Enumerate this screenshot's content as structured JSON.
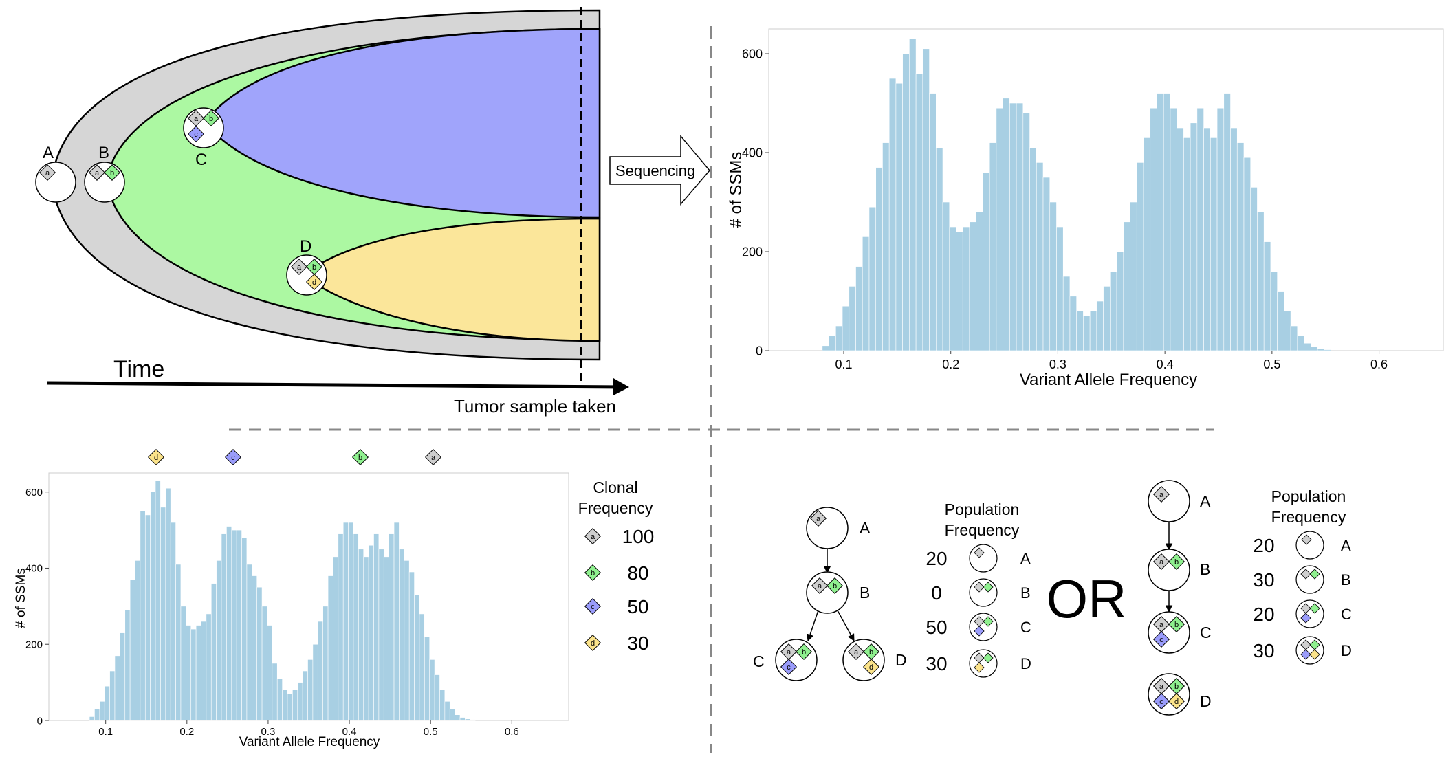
{
  "fish": {
    "label_A": "A",
    "label_B": "B",
    "label_C": "C",
    "label_D": "D",
    "time_label": "Time",
    "sample_label": "Tumor sample taken",
    "sequencing_label": "Sequencing"
  },
  "mutations": {
    "a": "a",
    "b": "b",
    "c": "c",
    "d": "d"
  },
  "colors": {
    "a": "#cfcfcf",
    "b": "#8ff08f",
    "c": "#9a9cfb",
    "d": "#fbe38a",
    "fish_outer": "#d6d6d6",
    "fish_green": "#acf8a2",
    "fish_blue": "#a0a4fb",
    "fish_yellow": "#fbe69a",
    "histogram": "#a8cfe3"
  },
  "chart_data": [
    {
      "type": "bar",
      "id": "top-histogram",
      "xlabel": "Variant Allele Frequency",
      "ylabel": "# of SSMs",
      "xlim": [
        0.03,
        0.66
      ],
      "ylim": [
        0,
        650
      ],
      "xticks": [
        "0.1",
        "0.2",
        "0.3",
        "0.4",
        "0.5",
        "0.6"
      ],
      "yticks": [
        "0",
        "200",
        "400",
        "600"
      ],
      "bin_start": 0.08,
      "bin_width": 0.00625,
      "values": [
        10,
        30,
        50,
        90,
        130,
        170,
        230,
        290,
        370,
        420,
        550,
        540,
        600,
        630,
        560,
        610,
        520,
        410,
        300,
        250,
        240,
        250,
        260,
        280,
        360,
        420,
        490,
        510,
        500,
        500,
        480,
        410,
        380,
        350,
        300,
        250,
        150,
        110,
        80,
        70,
        80,
        100,
        130,
        160,
        200,
        260,
        300,
        380,
        430,
        490,
        520,
        520,
        490,
        450,
        430,
        460,
        490,
        450,
        430,
        490,
        520,
        450,
        420,
        390,
        330,
        280,
        220,
        160,
        120,
        80,
        50,
        30,
        15,
        8,
        4,
        2
      ]
    },
    {
      "type": "bar",
      "id": "bottom-histogram",
      "xlabel": "Variant Allele Frequency",
      "ylabel": "# of SSMs",
      "xlim": [
        0.03,
        0.67
      ],
      "ylim": [
        0,
        650
      ],
      "xticks": [
        "0.1",
        "0.2",
        "0.3",
        "0.4",
        "0.5",
        "0.6"
      ],
      "yticks": [
        "0",
        "200",
        "400",
        "600"
      ],
      "bin_start": 0.08,
      "bin_width": 0.00625,
      "values": [
        10,
        30,
        50,
        90,
        130,
        170,
        230,
        290,
        370,
        420,
        550,
        540,
        600,
        630,
        560,
        610,
        520,
        410,
        300,
        250,
        240,
        250,
        260,
        280,
        360,
        420,
        490,
        510,
        500,
        500,
        480,
        410,
        380,
        350,
        300,
        250,
        150,
        110,
        80,
        70,
        80,
        100,
        130,
        160,
        200,
        260,
        300,
        380,
        430,
        490,
        520,
        520,
        490,
        450,
        430,
        460,
        490,
        450,
        430,
        490,
        520,
        450,
        420,
        390,
        330,
        280,
        220,
        160,
        120,
        80,
        50,
        30,
        15,
        8,
        4,
        2
      ]
    }
  ],
  "clonal": {
    "title_line1": "Clonal",
    "title_line2": "Frequency",
    "rows": [
      {
        "mut": "a",
        "value": "100"
      },
      {
        "mut": "b",
        "value": "80"
      },
      {
        "mut": "c",
        "value": "50"
      },
      {
        "mut": "d",
        "value": "30"
      }
    ]
  },
  "tree1": {
    "nodes": [
      "A",
      "B",
      "C",
      "D"
    ],
    "pop_title_line1": "Population",
    "pop_title_line2": "Frequency",
    "pop": [
      {
        "value": "20",
        "label": "A"
      },
      {
        "value": "0",
        "label": "B"
      },
      {
        "value": "50",
        "label": "C"
      },
      {
        "value": "30",
        "label": "D"
      }
    ]
  },
  "or_label": "OR",
  "tree2": {
    "nodes": [
      "A",
      "B",
      "C",
      "D"
    ],
    "pop_title_line1": "Population",
    "pop_title_line2": "Frequency",
    "pop": [
      {
        "value": "20",
        "label": "A"
      },
      {
        "value": "30",
        "label": "B"
      },
      {
        "value": "20",
        "label": "C"
      },
      {
        "value": "30",
        "label": "D"
      }
    ]
  }
}
